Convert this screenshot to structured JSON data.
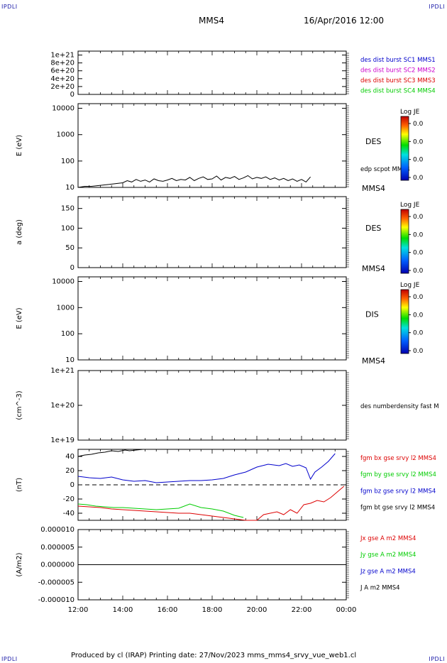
{
  "page": {
    "corner_tl": "IPDLI",
    "corner_tr": "IPDLI",
    "corner_bl": "IPDLI",
    "corner_br": "IPDLI",
    "spacecraft": "MMS4",
    "datetime": "16/Apr/2016 12:00",
    "footer": "Produced by cl (IRAP)   Printing date: 27/Nov/2023   mms_mms4_srvy_vue_web1.cl"
  },
  "colors": {
    "black": "#000000",
    "blue": "#0000cc",
    "magenta": "#cc00cc",
    "red": "#dd0000",
    "green": "#00cc00"
  },
  "time_axis": {
    "ticks": [
      "12:00",
      "14:00",
      "16:00",
      "18:00",
      "20:00",
      "22:00",
      "00:00"
    ],
    "start_hour": 12,
    "end_hour": 24
  },
  "chart_data": [
    {
      "id": "panel1",
      "type": "line",
      "ylabel": "",
      "yticks": [
        "1e+21",
        "8e+20",
        "6e+20",
        "4e+20",
        "2e+20",
        "0"
      ],
      "ylim": [
        0,
        1.1e+21
      ],
      "dashed_zero": true,
      "legend": [
        {
          "label": "des dist burst SC1 MMS1",
          "color": "#0000cc"
        },
        {
          "label": "des dist burst SC2 MMS2",
          "color": "#cc00cc"
        },
        {
          "label": "des dist burst SC3 MMS3",
          "color": "#dd0000"
        },
        {
          "label": "des dist burst SC4 MMS4",
          "color": "#00cc00"
        }
      ]
    },
    {
      "id": "panel2",
      "type": "line",
      "ylabel": "E (eV)",
      "yscale": "log",
      "yticks": [
        "10000",
        "1000",
        "100",
        "10"
      ],
      "ylim": [
        10,
        15000
      ],
      "right_label": "DES",
      "right_note": "edp scpot MMS4",
      "right_bottom": "MMS4",
      "colorbar": {
        "title": "Log JE",
        "ticks": [
          "0.0",
          "0.0",
          "0.0",
          "0.0"
        ]
      },
      "series": [
        {
          "name": "edp scpot MMS4",
          "color": "#000000",
          "x": [
            12.0,
            12.3,
            12.6,
            13.0,
            13.4,
            13.7,
            14.0,
            14.2,
            14.4,
            14.6,
            14.8,
            15.0,
            15.2,
            15.4,
            15.6,
            15.8,
            16.0,
            16.2,
            16.4,
            16.6,
            16.8,
            17.0,
            17.2,
            17.4,
            17.6,
            17.8,
            18.0,
            18.2,
            18.4,
            18.6,
            18.8,
            19.0,
            19.2,
            19.4,
            19.6,
            19.8,
            20.0,
            20.2,
            20.4,
            20.6,
            20.8,
            21.0,
            21.2,
            21.4,
            21.6,
            21.8,
            22.0,
            22.2,
            22.4
          ],
          "y": [
            10,
            11,
            11,
            12,
            13,
            14,
            15,
            18,
            16,
            20,
            17,
            19,
            16,
            21,
            18,
            17,
            19,
            22,
            18,
            20,
            19,
            24,
            18,
            22,
            25,
            20,
            21,
            27,
            19,
            24,
            22,
            26,
            20,
            23,
            28,
            21,
            24,
            22,
            25,
            20,
            23,
            19,
            22,
            18,
            21,
            17,
            20,
            16,
            25
          ]
        }
      ]
    },
    {
      "id": "panel3",
      "type": "heatmap",
      "ylabel": "a (deg)",
      "yticks": [
        "150",
        "100",
        "50",
        "0"
      ],
      "ylim": [
        0,
        180
      ],
      "right_label": "DES",
      "right_bottom": "MMS4",
      "colorbar": {
        "title": "Log JE",
        "ticks": [
          "0.0",
          "0.0",
          "0.0",
          "0.0"
        ]
      }
    },
    {
      "id": "panel4",
      "type": "heatmap",
      "ylabel": "E (eV)",
      "yscale": "log",
      "yticks": [
        "10000",
        "1000",
        "100",
        "10"
      ],
      "ylim": [
        10,
        15000
      ],
      "right_label": "DIS",
      "right_bottom": "MMS4",
      "colorbar": {
        "title": "Log JE",
        "ticks": [
          "0.0",
          "0.0",
          "0.0",
          "0.0"
        ]
      }
    },
    {
      "id": "panel5",
      "type": "line",
      "ylabel": "(cm^-3)",
      "yscale": "log",
      "yticks": [
        "1e+21",
        "1e+20",
        "1e+19"
      ],
      "ylim": [
        1e+19,
        1e+21
      ],
      "right_note": "des numberdensity fast M"
    },
    {
      "id": "panel6",
      "type": "line",
      "ylabel": "(nT)",
      "yticks": [
        "40",
        "20",
        "0",
        "-20",
        "-40"
      ],
      "ylim": [
        -50,
        50
      ],
      "dashed_zero": true,
      "legend": [
        {
          "label": "fgm bx gse srvy l2 MMS4",
          "color": "#dd0000"
        },
        {
          "label": "fgm by gse srvy l2 MMS4",
          "color": "#00cc00"
        },
        {
          "label": "fgm bz gse srvy l2 MMS4",
          "color": "#0000cc"
        },
        {
          "label": "fgm bt gse srvy l2 MMS4",
          "color": "#000000"
        }
      ],
      "series": [
        {
          "name": "fgm bt gse srvy l2 MMS4",
          "color": "#000000",
          "x": [
            12.0,
            12.3,
            12.6,
            12.9,
            13.2,
            13.5,
            13.8,
            14.1,
            14.3,
            14.6,
            14.9
          ],
          "y": [
            40,
            42,
            43,
            45,
            46,
            48,
            47,
            49,
            48,
            49,
            50
          ]
        },
        {
          "name": "fgm bz gse srvy l2 MMS4",
          "color": "#0000cc",
          "x": [
            12.0,
            12.5,
            13.0,
            13.5,
            14.0,
            14.5,
            15.0,
            15.5,
            16.0,
            16.5,
            17.0,
            17.5,
            18.0,
            18.5,
            19.0,
            19.5,
            20.0,
            20.5,
            21.0,
            21.3,
            21.6,
            21.9,
            22.2,
            22.4,
            22.6,
            22.9,
            23.2,
            23.5
          ],
          "y": [
            12,
            10,
            9,
            11,
            7,
            5,
            6,
            3,
            4,
            5,
            6,
            6,
            7,
            9,
            14,
            18,
            25,
            29,
            27,
            30,
            26,
            28,
            24,
            8,
            18,
            25,
            33,
            44
          ]
        },
        {
          "name": "fgm by gse srvy l2 MMS4",
          "color": "#00cc00",
          "x": [
            12.0,
            12.4,
            12.8,
            13.2,
            13.6,
            14.0,
            14.5,
            15.0,
            15.5,
            16.0,
            16.5,
            17.0,
            17.5,
            18.0,
            18.5,
            19.0,
            19.4
          ],
          "y": [
            -27,
            -28,
            -30,
            -31,
            -32,
            -32,
            -33,
            -34,
            -35,
            -34,
            -33,
            -27,
            -32,
            -34,
            -37,
            -43,
            -46
          ]
        },
        {
          "name": "fgm bx gse srvy l2 MMS4",
          "color": "#dd0000",
          "x": [
            12.0,
            12.5,
            13.0,
            13.5,
            14.0,
            14.5,
            15.0,
            15.5,
            16.0,
            16.5,
            17.0,
            17.5,
            18.0,
            18.5,
            19.0,
            19.5,
            20.0,
            20.3,
            20.6,
            20.9,
            21.2,
            21.5,
            21.8,
            22.1,
            22.4,
            22.7,
            23.0,
            23.3,
            23.6,
            23.9
          ],
          "y": [
            -30,
            -31,
            -32,
            -34,
            -35,
            -36,
            -37,
            -38,
            -39,
            -40,
            -40,
            -42,
            -44,
            -46,
            -48,
            -50,
            -50,
            -42,
            -40,
            -38,
            -42,
            -35,
            -40,
            -28,
            -26,
            -22,
            -24,
            -18,
            -10,
            -2
          ]
        }
      ]
    },
    {
      "id": "panel7",
      "type": "line",
      "ylabel": "(A/m2)",
      "yticks": [
        "0.000010",
        "0.000005",
        "0.000000",
        "-0.000005",
        "-0.000010"
      ],
      "ylim": [
        -1e-05,
        1e-05
      ],
      "legend": [
        {
          "label": "Jx gse A m2 MMS4",
          "color": "#dd0000"
        },
        {
          "label": "Jy gse A m2 MMS4",
          "color": "#00cc00"
        },
        {
          "label": "Jz gse A m2 MMS4",
          "color": "#0000cc"
        },
        {
          "label": "J A m2 MMS4",
          "color": "#000000"
        }
      ],
      "series": [
        {
          "name": "J A m2 MMS4",
          "color": "#000000",
          "x": [
            12.0,
            24.0
          ],
          "y": [
            0,
            0
          ]
        }
      ]
    }
  ]
}
